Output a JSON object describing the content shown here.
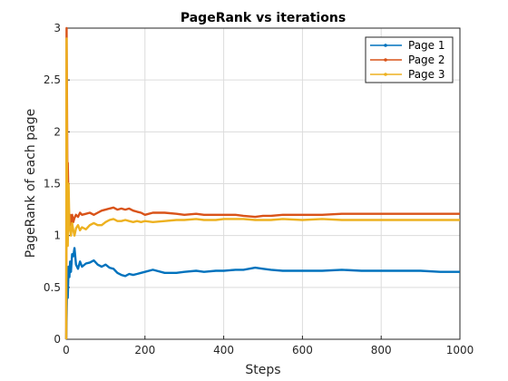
{
  "chart_data": {
    "type": "line",
    "title": "PageRank vs iterations",
    "xlabel": "Steps",
    "ylabel": "PageRank of each page",
    "xlim": [
      0,
      1000
    ],
    "ylim": [
      0,
      3
    ],
    "xticks": [
      0,
      200,
      400,
      600,
      800,
      1000
    ],
    "yticks": [
      0,
      0.5,
      1,
      1.5,
      2,
      2.5,
      3
    ],
    "xtick_labels": [
      "0",
      "200",
      "400",
      "600",
      "800",
      "1000"
    ],
    "ytick_labels": [
      "0",
      "0.5",
      "1",
      "1.5",
      "2",
      "2.5",
      "3"
    ],
    "grid": true,
    "legend_position": "top-right",
    "series": [
      {
        "name": "Page 1",
        "color": "#0072BD",
        "x": [
          0,
          2,
          4,
          6,
          8,
          10,
          12,
          15,
          18,
          21,
          25,
          30,
          35,
          40,
          50,
          60,
          70,
          80,
          90,
          100,
          110,
          120,
          130,
          140,
          150,
          160,
          170,
          180,
          190,
          200,
          220,
          250,
          280,
          300,
          330,
          350,
          380,
          400,
          430,
          450,
          480,
          500,
          520,
          550,
          600,
          650,
          700,
          750,
          800,
          850,
          900,
          950,
          1000
        ],
        "y": [
          0,
          0.5,
          0.4,
          0.7,
          0.6,
          0.75,
          0.65,
          0.82,
          0.8,
          0.88,
          0.72,
          0.68,
          0.75,
          0.7,
          0.73,
          0.74,
          0.76,
          0.72,
          0.7,
          0.72,
          0.69,
          0.68,
          0.64,
          0.62,
          0.61,
          0.63,
          0.62,
          0.63,
          0.64,
          0.65,
          0.67,
          0.64,
          0.64,
          0.65,
          0.66,
          0.65,
          0.66,
          0.66,
          0.67,
          0.67,
          0.69,
          0.68,
          0.67,
          0.66,
          0.66,
          0.66,
          0.67,
          0.66,
          0.66,
          0.66,
          0.66,
          0.65,
          0.65
        ]
      },
      {
        "name": "Page 2",
        "color": "#D95319",
        "x": [
          0,
          1,
          2,
          3,
          4,
          6,
          8,
          10,
          12,
          15,
          18,
          21,
          25,
          30,
          35,
          40,
          50,
          60,
          70,
          80,
          90,
          100,
          110,
          120,
          130,
          140,
          150,
          160,
          170,
          180,
          190,
          200,
          220,
          250,
          280,
          300,
          330,
          350,
          380,
          400,
          430,
          450,
          480,
          500,
          520,
          550,
          600,
          650,
          700,
          750,
          800,
          850,
          900,
          950,
          1000
        ],
        "y": [
          0,
          3.0,
          2.2,
          1.5,
          1.7,
          1.3,
          1.15,
          1.2,
          1.1,
          1.2,
          1.13,
          1.17,
          1.2,
          1.18,
          1.22,
          1.2,
          1.21,
          1.22,
          1.2,
          1.22,
          1.24,
          1.25,
          1.26,
          1.27,
          1.25,
          1.26,
          1.25,
          1.26,
          1.24,
          1.23,
          1.22,
          1.2,
          1.22,
          1.22,
          1.21,
          1.2,
          1.21,
          1.2,
          1.2,
          1.2,
          1.2,
          1.19,
          1.18,
          1.19,
          1.19,
          1.2,
          1.2,
          1.2,
          1.21,
          1.21,
          1.21,
          1.21,
          1.21,
          1.21,
          1.21
        ]
      },
      {
        "name": "Page 3",
        "color": "#EDB120",
        "x": [
          0,
          1,
          2,
          3,
          4,
          6,
          8,
          10,
          12,
          15,
          18,
          21,
          25,
          30,
          35,
          40,
          50,
          60,
          70,
          80,
          90,
          100,
          110,
          120,
          130,
          140,
          150,
          160,
          170,
          180,
          190,
          200,
          220,
          250,
          280,
          300,
          330,
          350,
          380,
          400,
          430,
          450,
          480,
          500,
          520,
          550,
          600,
          650,
          700,
          750,
          800,
          850,
          900,
          950,
          1000
        ],
        "y": [
          0,
          2.9,
          1.4,
          1.0,
          0.9,
          1.5,
          1.1,
          1.05,
          1.0,
          1.12,
          1.05,
          1.0,
          1.07,
          1.1,
          1.05,
          1.08,
          1.06,
          1.1,
          1.12,
          1.1,
          1.1,
          1.13,
          1.15,
          1.16,
          1.14,
          1.14,
          1.15,
          1.14,
          1.13,
          1.14,
          1.13,
          1.14,
          1.13,
          1.14,
          1.15,
          1.15,
          1.16,
          1.15,
          1.15,
          1.16,
          1.16,
          1.16,
          1.15,
          1.15,
          1.15,
          1.16,
          1.15,
          1.16,
          1.15,
          1.15,
          1.15,
          1.15,
          1.15,
          1.15,
          1.15
        ]
      }
    ]
  }
}
